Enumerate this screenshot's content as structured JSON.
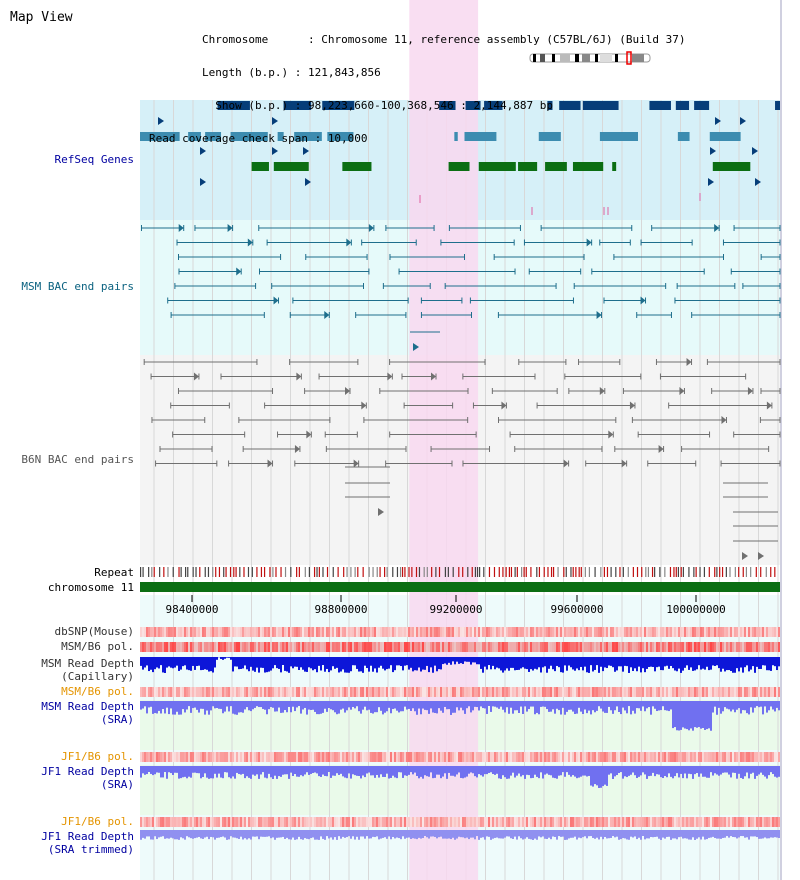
{
  "page": {
    "title": "Map View"
  },
  "info": {
    "chromosome_label": "Chromosome      : ",
    "chromosome_value": "Chromosome 11, reference assembly (C57BL/6J) (Build 37)",
    "length_label": "Length (b.p.) : ",
    "length_value": "121,843,856",
    "show_label": "  Show (b.p.) : ",
    "show_value": "98,223,660-100,368,546 : 2,144,887 bp",
    "coverage_label": "Read coverage check span : ",
    "coverage_value": "10,000"
  },
  "tracks": {
    "refseq": "RefSeq Genes",
    "msm_bac": "MSM BAC end pairs",
    "b6n_bac": "B6N BAC end pairs",
    "repeat": "Repeat",
    "chromosome": "chromosome 11",
    "dbsnp": "dbSNP(Mouse)",
    "msm_b6_pol_1": "MSM/B6 pol.",
    "msm_depth_cap_1": "MSM Read Depth",
    "msm_depth_cap_2": "(Capillary)",
    "msm_b6_pol_2": "MSM/B6 pol.",
    "msm_depth_sra_1": "MSM Read Depth",
    "msm_depth_sra_2": "(SRA)",
    "jf1_b6_pol_1": "JF1/B6 pol.",
    "jf1_depth_sra_1": "JF1 Read Depth",
    "jf1_depth_sra_2": "(SRA)",
    "jf1_b6_pol_2": "JF1/B6 pol.",
    "jf1_depth_trim_1": "JF1 Read Depth",
    "jf1_depth_trim_2": "(SRA trimmed)"
  },
  "axis": {
    "range_bp": [
      98223660,
      100368546
    ],
    "ticks": [
      "98400000",
      "98800000",
      "99200000",
      "99600000",
      "100000000"
    ]
  },
  "highlight_region_bp": [
    99200000,
    99350000
  ],
  "colors": {
    "refseq_bg": "#d6f0f8",
    "bac_bg": "#e6fafa",
    "b6n_bg": "#f4f4f4",
    "highlight": "#f8d8f0",
    "gene_dark_blue": "#063e79",
    "gene_mid_blue": "#3c8cb0",
    "gene_green": "#0b6e13",
    "msm_bac_line": "#1e6e8c",
    "b6n_bac_line": "#707070",
    "chromosome_bar": "#0b6e13",
    "depth_blue": "#0d16d8",
    "depth_violet": "#7070f0",
    "label_blue": "#0000a0",
    "label_teal": "#0b6280",
    "label_grey": "#606060",
    "label_orange": "#e49400",
    "label_dark": "#333333"
  }
}
